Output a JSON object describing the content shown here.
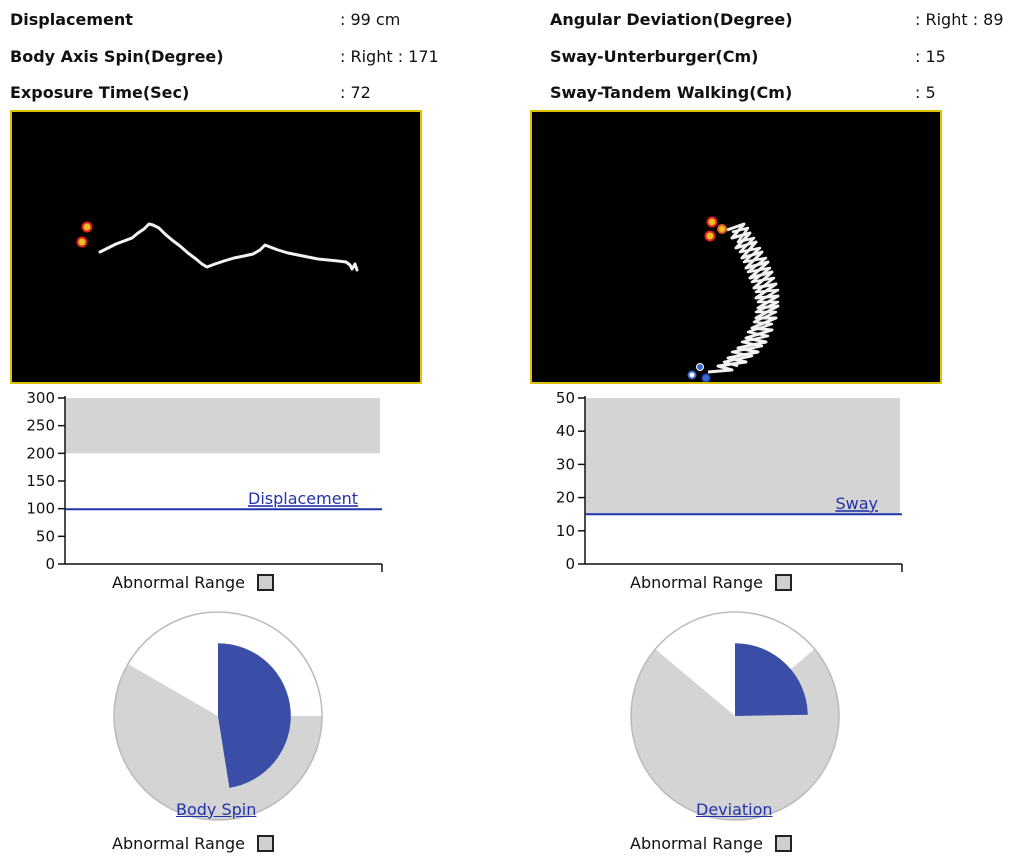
{
  "info": {
    "displacement": {
      "label": "Displacement",
      "value": ": 99 cm"
    },
    "body_axis_spin": {
      "label": "Body Axis Spin(Degree)",
      "value": ": Right : 171"
    },
    "exposure_time": {
      "label": "Exposure Time(Sec)",
      "value": ": 72"
    },
    "angular_deviation": {
      "label": "Angular Deviation(Degree)",
      "value": ": Right : 89"
    },
    "sway_unterburger": {
      "label": "Sway-Unterburger(Cm)",
      "value": ": 15"
    },
    "sway_tandem": {
      "label": "Sway-Tandem Walking(Cm)",
      "value": ": 5"
    }
  },
  "legend": {
    "abnormal_range": "Abnormal Range"
  },
  "chart_data": [
    {
      "type": "bar",
      "name": "displacement-bar-chart",
      "series": [
        {
          "name": "Displacement",
          "values": [
            99
          ]
        }
      ],
      "yticks": [
        "0",
        "50",
        "100",
        "150",
        "200",
        "250",
        "300"
      ],
      "ylim": [
        0,
        300
      ],
      "abnormal_range": [
        200,
        300
      ],
      "colors": {
        "line": "#2233aa",
        "abnormal": "#d4d4d4"
      }
    },
    {
      "type": "bar",
      "name": "sway-bar-chart",
      "series": [
        {
          "name": "Sway",
          "values": [
            15
          ]
        }
      ],
      "yticks": [
        "0",
        "10",
        "20",
        "30",
        "40",
        "50"
      ],
      "ylim": [
        0,
        50
      ],
      "abnormal_range": [
        15,
        50
      ],
      "colors": {
        "line": "#2233aa",
        "abnormal": "#d4d4d4"
      }
    },
    {
      "type": "pie",
      "name": "body-spin-pie",
      "label": "Body Spin",
      "value_degrees": 171,
      "direction": "Right",
      "normal_range_degrees": [
        -60,
        90
      ],
      "colors": {
        "value": "#3a4ea8",
        "abnormal": "#d4d4d4",
        "normal": "#ffffff"
      }
    },
    {
      "type": "pie",
      "name": "deviation-pie",
      "label": "Deviation",
      "value_degrees": 89,
      "direction": "Right",
      "normal_range_degrees": [
        -50,
        50
      ],
      "colors": {
        "value": "#3a4ea8",
        "abnormal": "#d4d4d4",
        "normal": "#ffffff"
      }
    }
  ]
}
